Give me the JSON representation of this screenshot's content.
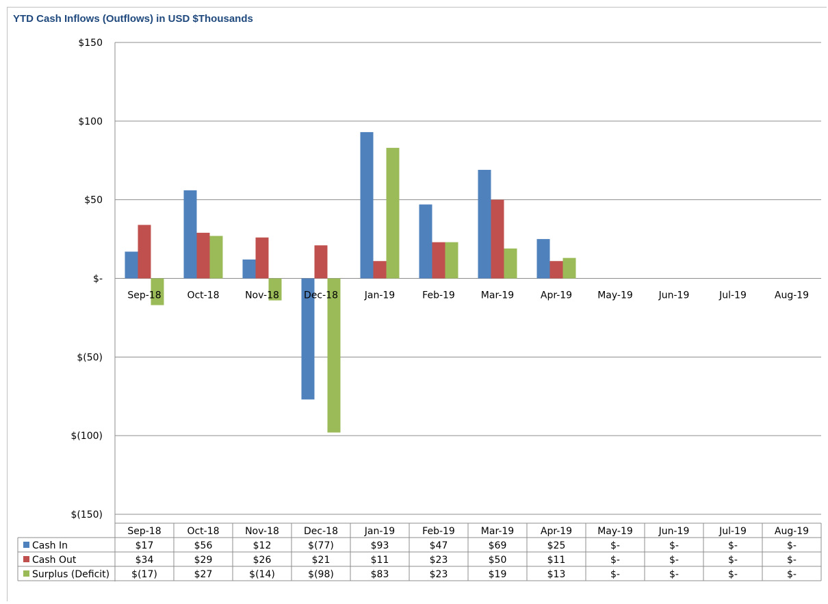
{
  "chart_data": {
    "type": "bar",
    "title": "YTD Cash Inflows (Outflows) in USD $Thousands",
    "categories": [
      "Sep-18",
      "Oct-18",
      "Nov-18",
      "Dec-18",
      "Jan-19",
      "Feb-19",
      "Mar-19",
      "Apr-19",
      "May-19",
      "Jun-19",
      "Jul-19",
      "Aug-19"
    ],
    "series": [
      {
        "name": "Cash In",
        "color": "#4f81bd",
        "values": [
          17,
          56,
          12,
          -77,
          93,
          47,
          69,
          25,
          0,
          0,
          0,
          0
        ],
        "labels": [
          "$17",
          "$56",
          "$12",
          "$(77)",
          "$93",
          "$47",
          "$69",
          "$25",
          "$-",
          "$-",
          "$-",
          "$-"
        ]
      },
      {
        "name": "Cash Out",
        "color": "#c0504d",
        "values": [
          34,
          29,
          26,
          21,
          11,
          23,
          50,
          11,
          0,
          0,
          0,
          0
        ],
        "labels": [
          "$34",
          "$29",
          "$26",
          "$21",
          "$11",
          "$23",
          "$50",
          "$11",
          "$-",
          "$-",
          "$-",
          "$-"
        ]
      },
      {
        "name": "Surplus (Deficit)",
        "color": "#9bbb59",
        "values": [
          -17,
          27,
          -14,
          -98,
          83,
          23,
          19,
          13,
          0,
          0,
          0,
          0
        ],
        "labels": [
          "$(17)",
          "$27",
          "$(14)",
          "$(98)",
          "$83",
          "$23",
          "$19",
          "$13",
          "$-",
          "$-",
          "$-",
          "$-"
        ]
      }
    ],
    "ylim": [
      -150,
      150
    ],
    "yticks": [
      150,
      100,
      50,
      0,
      -50,
      -100,
      -150
    ],
    "ytick_labels": [
      "$150",
      "$100",
      "$50",
      "$-",
      "$(50)",
      "$(100)",
      "$(150)"
    ],
    "grid": true,
    "legend": "data-table"
  }
}
